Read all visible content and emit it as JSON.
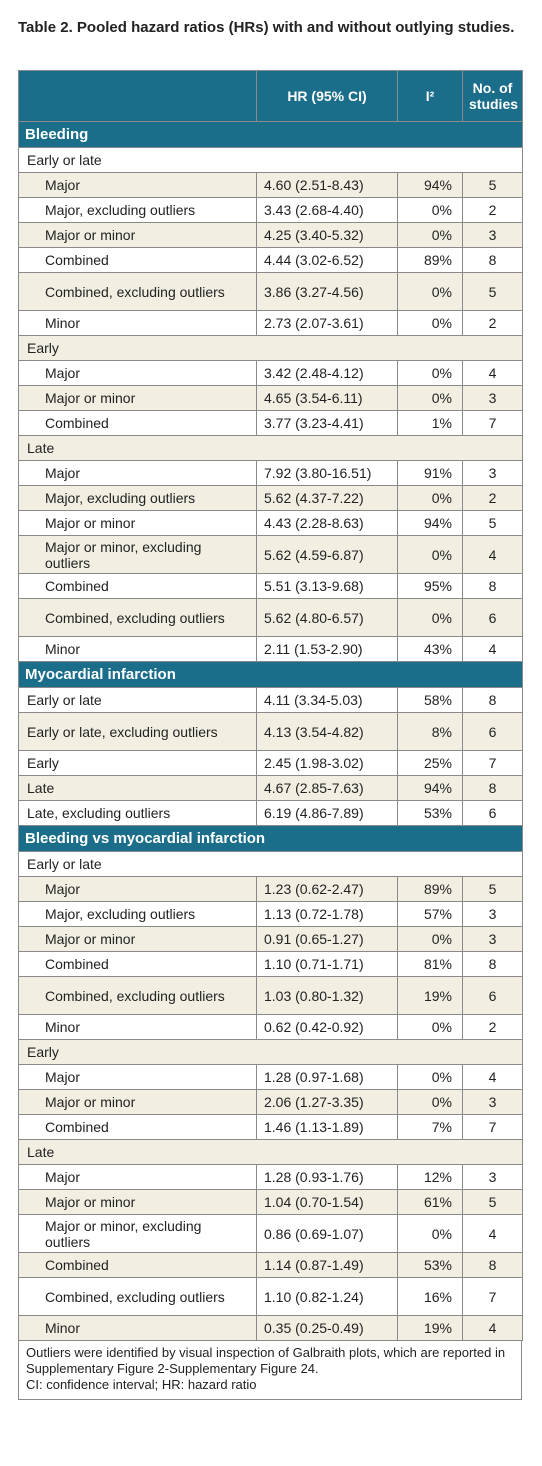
{
  "table": {
    "title": "Table 2. Pooled hazard ratios (HRs) with and without outlying studies.",
    "header": [
      "HR (95% CI)",
      "I²",
      "No. of studies"
    ],
    "sections": [
      {
        "title": "Bleeding",
        "groups": [
          {
            "label": "Early or late",
            "rows": [
              [
                "Major",
                "4.60 (2.51-8.43)",
                "94%",
                "5"
              ],
              [
                "Major, excluding outliers",
                "3.43 (2.68-4.40)",
                "0%",
                "2"
              ],
              [
                "Major or minor",
                "4.25 (3.40-5.32)",
                "0%",
                "3"
              ],
              [
                "Combined",
                "4.44 (3.02-6.52)",
                "89%",
                "8"
              ],
              [
                "Combined, excluding outliers",
                "3.86 (3.27-4.56)",
                "0%",
                "5"
              ],
              [
                "Minor",
                "2.73 (2.07-3.61)",
                "0%",
                "2"
              ]
            ]
          },
          {
            "label": "Early",
            "rows": [
              [
                "Major",
                "3.42 (2.48-4.12)",
                "0%",
                "4"
              ],
              [
                "Major or minor",
                "4.65 (3.54-6.11)",
                "0%",
                "3"
              ],
              [
                "Combined",
                "3.77 (3.23-4.41)",
                "1%",
                "7"
              ]
            ]
          },
          {
            "label": "Late",
            "rows": [
              [
                "Major",
                "7.92 (3.80-16.51)",
                "91%",
                "3"
              ],
              [
                "Major, excluding outliers",
                "5.62 (4.37-7.22)",
                "0%",
                "2"
              ],
              [
                "Major or minor",
                "4.43 (2.28-8.63)",
                "94%",
                "5"
              ],
              [
                "Major or minor, excluding outliers",
                "5.62 (4.59-6.87)",
                "0%",
                "4"
              ],
              [
                "Combined",
                "5.51 (3.13-9.68)",
                "95%",
                "8"
              ],
              [
                "Combined, excluding outliers",
                "5.62 (4.80-6.57)",
                "0%",
                "6"
              ],
              [
                "Minor",
                "2.11 (1.53-2.90)",
                "43%",
                "4"
              ]
            ]
          }
        ]
      },
      {
        "title": "Myocardial infarction",
        "rows": [
          [
            "Early or late",
            "4.11 (3.34-5.03)",
            "58%",
            "8"
          ],
          [
            "Early or late, excluding outliers",
            "4.13 (3.54-4.82)",
            "8%",
            "6"
          ],
          [
            "Early",
            "2.45 (1.98-3.02)",
            "25%",
            "7"
          ],
          [
            "Late",
            "4.67 (2.85-7.63)",
            "94%",
            "8"
          ],
          [
            "Late, excluding outliers",
            "6.19 (4.86-7.89)",
            "53%",
            "6"
          ]
        ]
      },
      {
        "title": "Bleeding vs myocardial infarction",
        "groups": [
          {
            "label": "Early or late",
            "rows": [
              [
                "Major",
                "1.23 (0.62-2.47)",
                "89%",
                "5"
              ],
              [
                "Major, excluding outliers",
                "1.13 (0.72-1.78)",
                "57%",
                "3"
              ],
              [
                "Major or minor",
                "0.91 (0.65-1.27)",
                "0%",
                "3"
              ],
              [
                "Combined",
                "1.10 (0.71-1.71)",
                "81%",
                "8"
              ],
              [
                "Combined, excluding outliers",
                "1.03 (0.80-1.32)",
                "19%",
                "6"
              ],
              [
                "Minor",
                "0.62 (0.42-0.92)",
                "0%",
                "2"
              ]
            ]
          },
          {
            "label": "Early",
            "rows": [
              [
                "Major",
                "1.28 (0.97-1.68)",
                "0%",
                "4"
              ],
              [
                "Major or minor",
                "2.06 (1.27-3.35)",
                "0%",
                "3"
              ],
              [
                "Combined",
                "1.46 (1.13-1.89)",
                "7%",
                "7"
              ]
            ]
          },
          {
            "label": "Late",
            "rows": [
              [
                "Major",
                "1.28 (0.93-1.76)",
                "12%",
                "3"
              ],
              [
                "Major or minor",
                "1.04 (0.70-1.54)",
                "61%",
                "5"
              ],
              [
                "Major or minor, excluding outliers",
                "0.86 (0.69-1.07)",
                "0%",
                "4"
              ],
              [
                "Combined",
                "1.14 (0.87-1.49)",
                "53%",
                "8"
              ],
              [
                "Combined, excluding outliers",
                "1.10 (0.82-1.24)",
                "16%",
                "7"
              ],
              [
                "Minor",
                "0.35 (0.25-0.49)",
                "19%",
                "4"
              ]
            ]
          }
        ]
      }
    ],
    "footnotes": [
      "Outliers were identified by visual inspection of Galbraith plots, which are reported in Supplementary Figure 2-Supplementary Figure 24.",
      "CI: confidence interval; HR: hazard ratio"
    ]
  }
}
